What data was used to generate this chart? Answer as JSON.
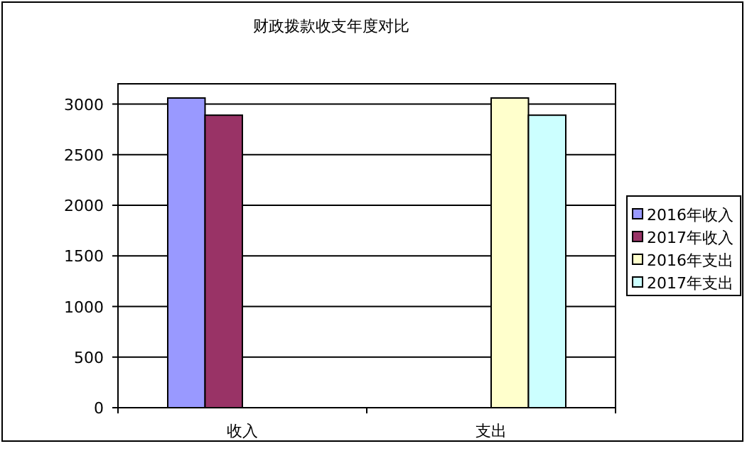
{
  "chart_data": {
    "type": "bar",
    "title": "财政拨款收支年度对比",
    "categories": [
      "收入",
      "支出"
    ],
    "series": [
      {
        "name": "2016年收入",
        "color": "#9999ff",
        "values": [
          3060,
          null
        ]
      },
      {
        "name": "2017年收入",
        "color": "#993366",
        "values": [
          2890,
          null
        ]
      },
      {
        "name": "2016年支出",
        "color": "#ffffcc",
        "values": [
          null,
          3060
        ]
      },
      {
        "name": "2017年支出",
        "color": "#ccffff",
        "values": [
          null,
          2890
        ]
      }
    ],
    "ylim": [
      0,
      3200
    ],
    "yticks": [
      0,
      500,
      1000,
      1500,
      2000,
      2500,
      3000
    ],
    "grid": "y",
    "legend": "right"
  }
}
